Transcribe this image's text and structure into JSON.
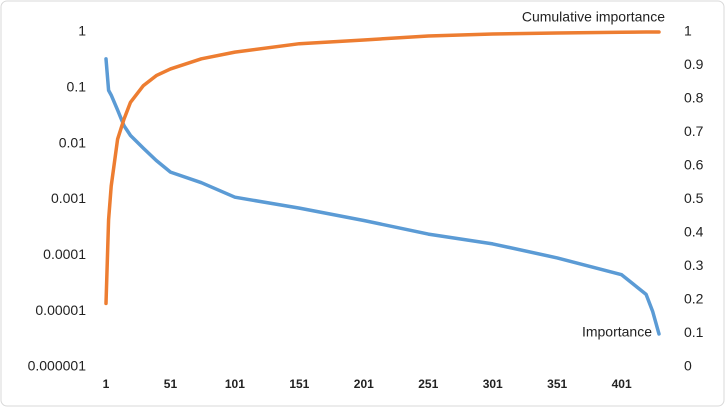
{
  "chart_data": {
    "type": "line",
    "x": [
      1,
      3,
      5,
      10,
      15,
      20,
      30,
      40,
      51,
      75,
      101,
      151,
      201,
      251,
      301,
      351,
      401,
      420,
      425,
      430
    ],
    "xlim": [
      1,
      430
    ],
    "xticks": [
      1,
      51,
      101,
      151,
      201,
      251,
      301,
      351,
      401
    ],
    "ylim": [
      1e-06,
      1
    ],
    "yticks": [
      1e-06,
      1e-05,
      0.0001,
      0.001,
      0.01,
      0.1,
      1
    ],
    "yscale": "log",
    "y2lim": [
      0,
      1
    ],
    "y2ticks": [
      0,
      0.1,
      0.2,
      0.3,
      0.4,
      0.5,
      0.6,
      0.7,
      0.8,
      0.9,
      1
    ],
    "series": [
      {
        "name": "Importance",
        "color": "#5b9bd5",
        "values": [
          0.33,
          0.09,
          0.074,
          0.04,
          0.021,
          0.014,
          0.0083,
          0.005,
          0.0031,
          0.002,
          0.0011,
          0.0007,
          0.00042,
          0.00024,
          0.00016,
          9e-05,
          4.5e-05,
          2e-05,
          1e-05,
          3.9e-06
        ]
      },
      {
        "name": "Cumulative importance",
        "color": "#ed7d31",
        "axis": "y2",
        "values": [
          0.19,
          0.44,
          0.54,
          0.68,
          0.74,
          0.79,
          0.84,
          0.87,
          0.89,
          0.92,
          0.94,
          0.965,
          0.976,
          0.988,
          0.994,
          0.997,
          0.999,
          1,
          1,
          1
        ]
      }
    ]
  }
}
